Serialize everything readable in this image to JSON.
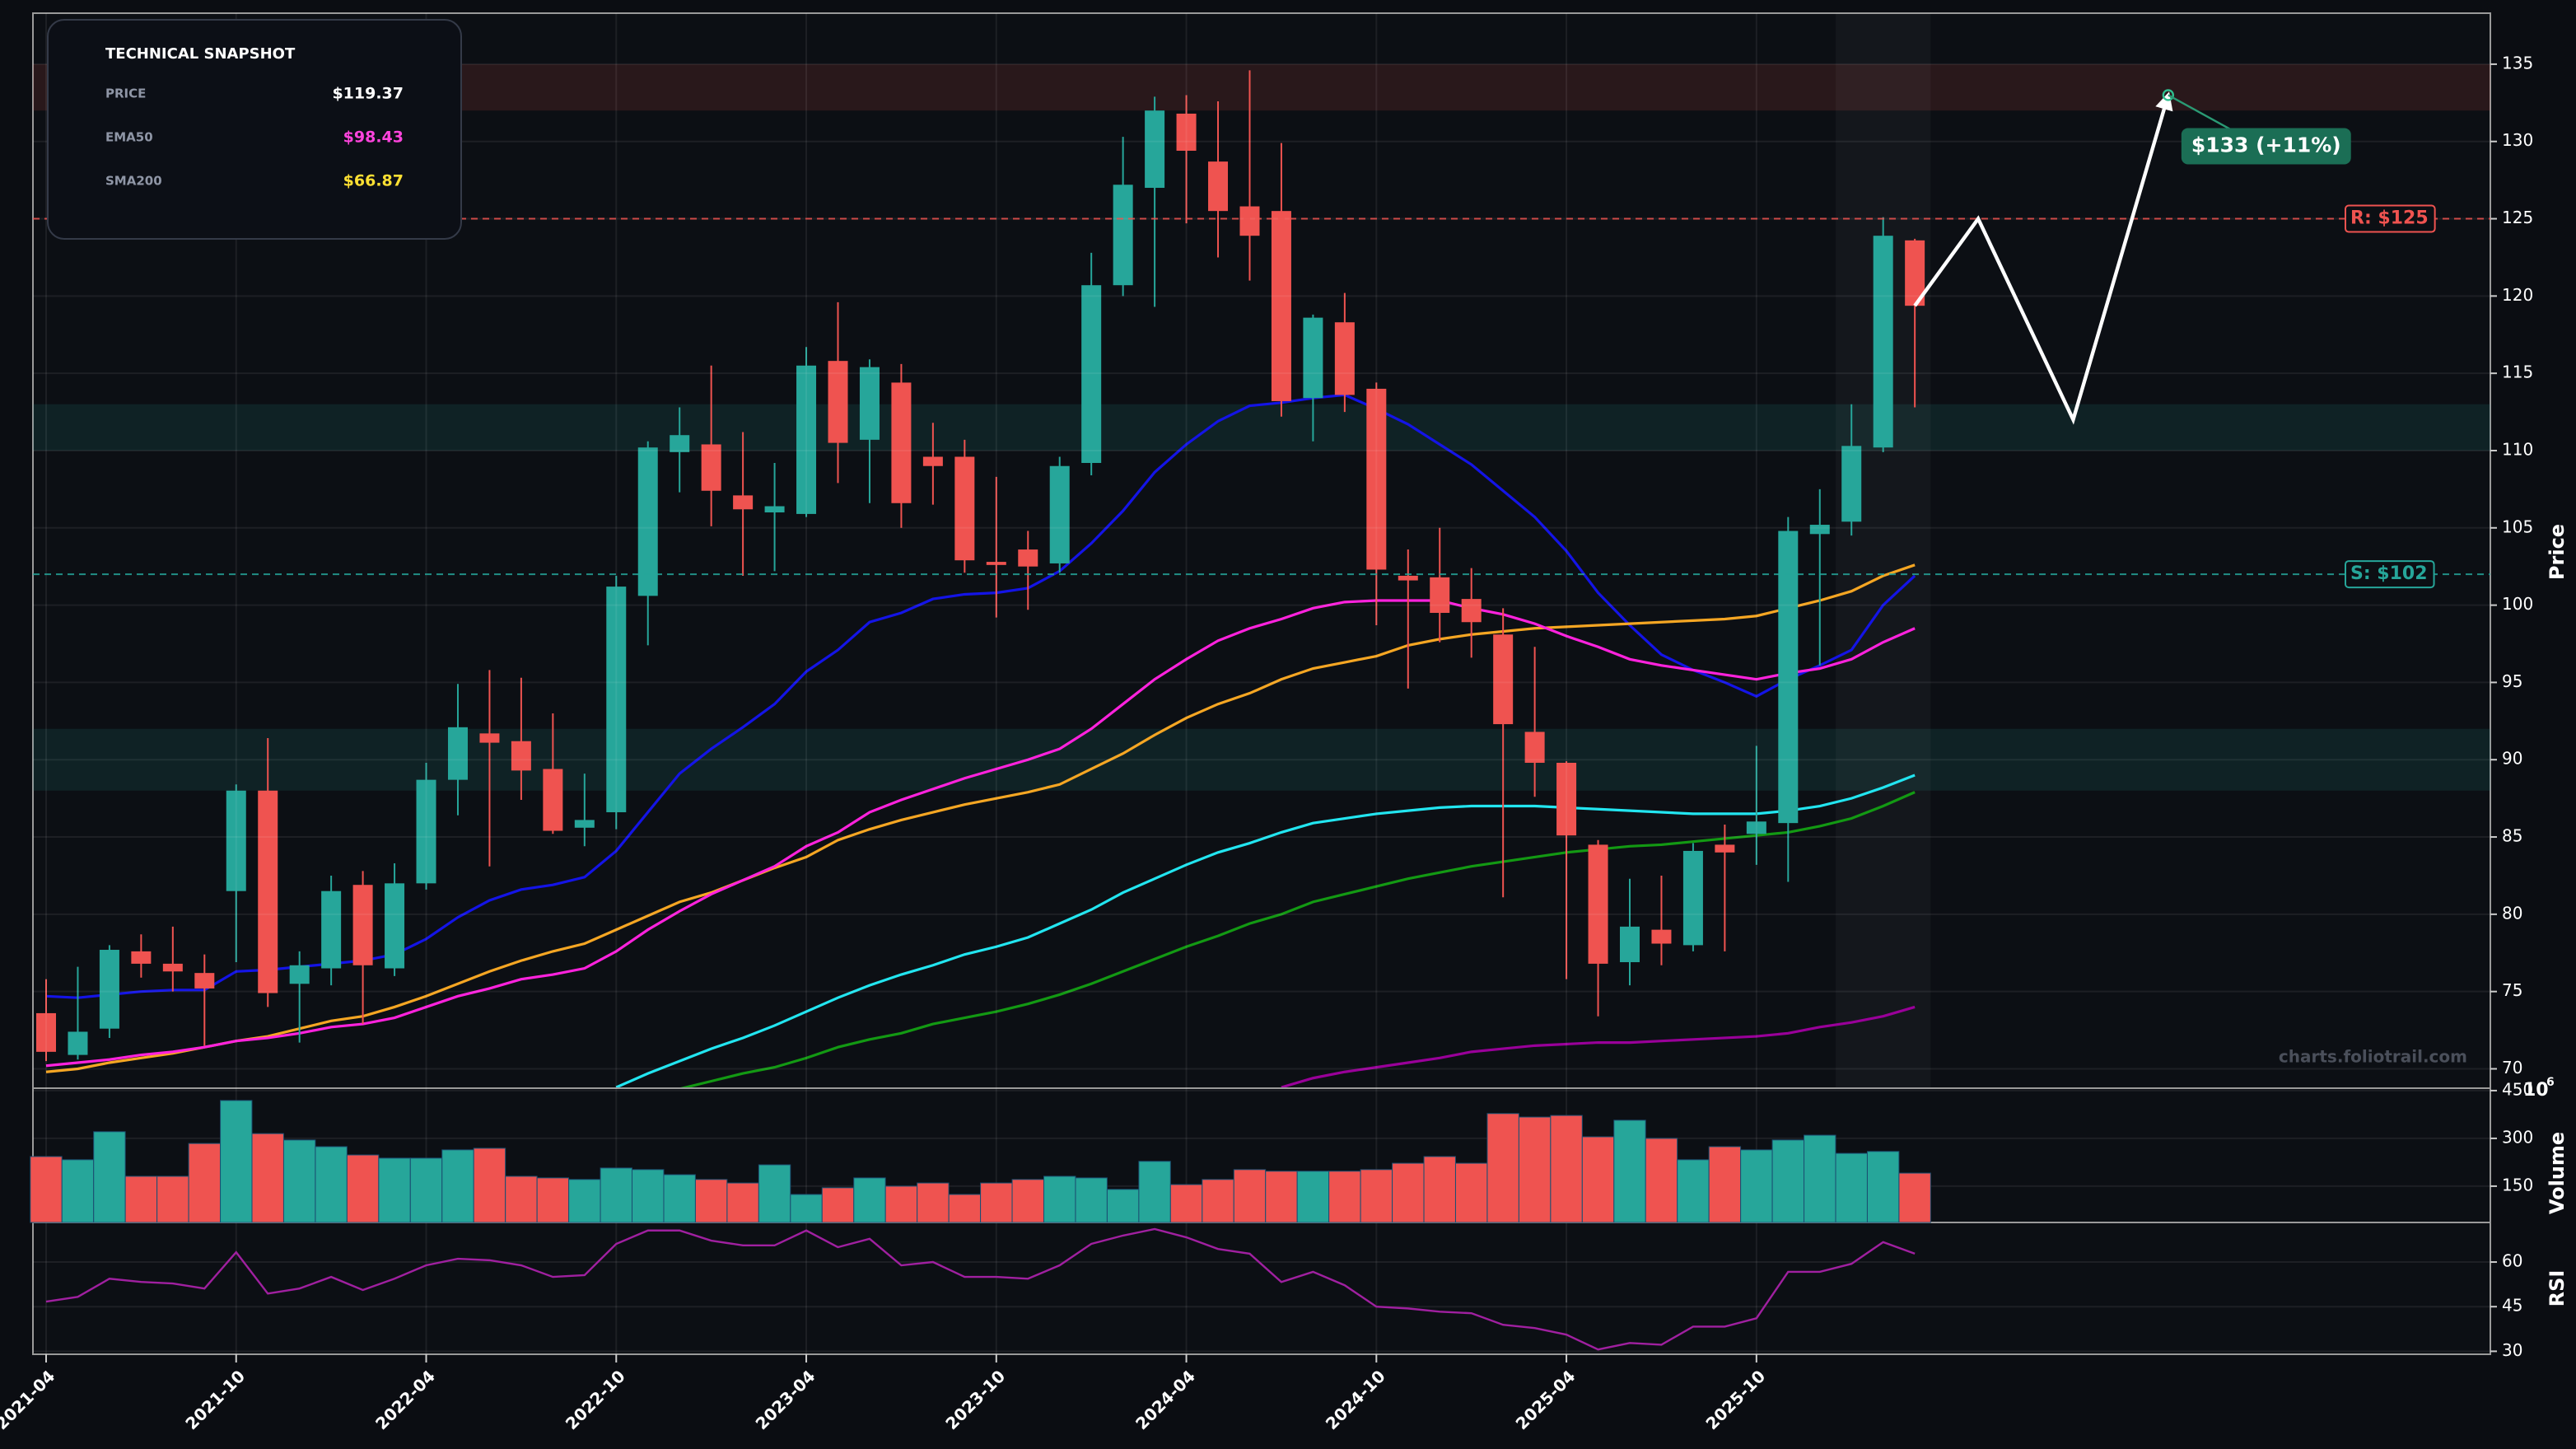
{
  "chart_data": {
    "type": "candlestick",
    "x": [
      "2021-04",
      "2021-05",
      "2021-06",
      "2021-07",
      "2021-08",
      "2021-09",
      "2021-10",
      "2021-11",
      "2021-12",
      "2022-01",
      "2022-02",
      "2022-03",
      "2022-04",
      "2022-05",
      "2022-06",
      "2022-07",
      "2022-08",
      "2022-09",
      "2022-10",
      "2022-11",
      "2022-12",
      "2023-01",
      "2023-02",
      "2023-03",
      "2023-04",
      "2023-05",
      "2023-06",
      "2023-07",
      "2023-08",
      "2023-09",
      "2023-10",
      "2023-11",
      "2023-12",
      "2024-01",
      "2024-02",
      "2024-03",
      "2024-04",
      "2024-05",
      "2024-06",
      "2024-07",
      "2024-08",
      "2024-09",
      "2024-10",
      "2024-11",
      "2024-12",
      "2025-01",
      "2025-02",
      "2025-03",
      "2025-04",
      "2025-05",
      "2025-06",
      "2025-07",
      "2025-08",
      "2025-09",
      "2025-10",
      "2025-11",
      "2025-12",
      "2026-01",
      "2026-02",
      "2026-03"
    ],
    "open": [
      73.6,
      70.9,
      72.6,
      77.6,
      76.8,
      76.2,
      81.5,
      88.0,
      75.5,
      76.5,
      81.9,
      76.5,
      82.0,
      88.7,
      91.7,
      91.2,
      89.4,
      85.6,
      86.6,
      100.6,
      109.9,
      110.4,
      107.1,
      106.0,
      105.9,
      115.8,
      110.7,
      114.4,
      109.6,
      109.6,
      102.8,
      103.6,
      102.7,
      109.2,
      120.7,
      127.0,
      131.8,
      128.7,
      125.8,
      125.5,
      113.4,
      118.3,
      114.0,
      101.9,
      101.8,
      100.4,
      98.1,
      91.8,
      89.8,
      84.5,
      76.9,
      79.0,
      78.0,
      84.5,
      85.2,
      85.9,
      104.6,
      105.4,
      110.2,
      123.6
    ],
    "high": [
      75.8,
      76.6,
      78.0,
      78.7,
      79.2,
      77.4,
      88.4,
      91.4,
      77.6,
      82.5,
      82.8,
      83.3,
      89.8,
      94.9,
      95.8,
      95.3,
      93.0,
      89.1,
      101.9,
      110.6,
      112.8,
      115.5,
      111.2,
      109.2,
      116.7,
      119.6,
      115.9,
      115.6,
      111.8,
      110.7,
      108.3,
      104.8,
      109.6,
      122.8,
      130.3,
      132.9,
      133.0,
      132.6,
      134.6,
      129.9,
      118.8,
      120.2,
      114.4,
      103.6,
      105.0,
      102.4,
      99.8,
      97.3,
      89.9,
      84.8,
      82.3,
      82.5,
      84.6,
      85.8,
      90.9,
      105.7,
      107.5,
      113.0,
      125.1,
      123.7
    ],
    "low": [
      70.5,
      70.6,
      72.0,
      75.9,
      75.0,
      71.5,
      76.9,
      74.0,
      71.7,
      75.4,
      72.9,
      76.0,
      81.6,
      86.4,
      83.1,
      87.4,
      85.2,
      84.4,
      85.5,
      97.4,
      107.3,
      105.1,
      101.9,
      102.2,
      105.7,
      107.9,
      106.6,
      105.0,
      106.5,
      102.1,
      99.2,
      99.7,
      102.1,
      108.4,
      120.0,
      119.3,
      124.7,
      122.5,
      121.0,
      112.2,
      110.6,
      112.5,
      98.7,
      94.6,
      97.6,
      96.6,
      81.1,
      87.6,
      75.8,
      73.4,
      75.4,
      76.7,
      77.6,
      77.6,
      83.2,
      82.1,
      96.1,
      104.5,
      109.9,
      112.8
    ],
    "close": [
      71.1,
      72.4,
      77.7,
      76.8,
      76.3,
      75.2,
      88.0,
      74.9,
      76.7,
      81.5,
      76.7,
      82.0,
      88.7,
      92.1,
      91.1,
      89.3,
      85.4,
      86.1,
      101.2,
      110.2,
      111.0,
      107.4,
      106.2,
      106.4,
      115.5,
      110.5,
      115.4,
      106.6,
      109.0,
      102.9,
      102.6,
      102.5,
      109.0,
      120.7,
      127.2,
      132.0,
      129.4,
      125.5,
      123.9,
      113.2,
      118.6,
      113.6,
      102.3,
      101.6,
      99.5,
      98.9,
      92.3,
      89.8,
      85.1,
      76.8,
      79.2,
      78.1,
      84.1,
      84.0,
      86.0,
      104.8,
      105.2,
      110.3,
      123.9,
      119.37
    ],
    "up_color": "#26a69a",
    "down_color": "#ef5350",
    "ylim": [
      68.8,
      138.3
    ],
    "yticks": [
      70,
      75,
      80,
      85,
      90,
      95,
      100,
      105,
      110,
      115,
      120,
      125,
      130,
      135
    ],
    "ylabel": "Price",
    "grid": true,
    "xticks": [
      "2021-04",
      "2021-10",
      "2022-04",
      "2022-10",
      "2023-04",
      "2023-10",
      "2024-04",
      "2024-10",
      "2025-04",
      "2025-10"
    ],
    "overlays": [
      {
        "color": "#1414e6",
        "values": [
          74.7,
          74.6,
          74.8,
          75.0,
          75.1,
          75.1,
          76.3,
          76.4,
          76.6,
          76.8,
          77.0,
          77.4,
          78.4,
          79.8,
          80.9,
          81.6,
          81.9,
          82.4,
          84.1,
          86.6,
          89.1,
          90.7,
          92.1,
          93.6,
          95.7,
          97.1,
          98.9,
          99.5,
          100.4,
          100.7,
          100.8,
          101.1,
          102.2,
          104.0,
          106.1,
          108.6,
          110.4,
          111.9,
          112.9,
          113.1,
          113.4,
          113.6,
          112.7,
          111.7,
          110.4,
          109.1,
          107.4,
          105.7,
          103.5,
          100.8,
          98.7,
          96.8,
          95.8,
          95.0,
          94.1,
          95.2,
          96.1,
          97.1,
          100.0,
          101.9
        ]
      },
      {
        "color": "#f5a623",
        "values": [
          69.8,
          70.0,
          70.4,
          70.7,
          71.0,
          71.4,
          71.8,
          72.1,
          72.6,
          73.1,
          73.4,
          74.0,
          74.7,
          75.5,
          76.3,
          77.0,
          77.6,
          78.1,
          79.0,
          79.9,
          80.8,
          81.4,
          82.2,
          83.0,
          83.7,
          84.8,
          85.5,
          86.1,
          86.6,
          87.1,
          87.5,
          87.9,
          88.4,
          89.4,
          90.4,
          91.6,
          92.7,
          93.6,
          94.3,
          95.2,
          95.9,
          96.3,
          96.7,
          97.4,
          97.8,
          98.1,
          98.3,
          98.5,
          98.6,
          98.7,
          98.8,
          98.9,
          99.0,
          99.1,
          99.3,
          99.8,
          100.3,
          100.9,
          101.9,
          102.6
        ]
      },
      {
        "color": "#ff22dd",
        "values": [
          70.2,
          70.4,
          70.6,
          70.9,
          71.1,
          71.4,
          71.8,
          72.0,
          72.3,
          72.7,
          72.9,
          73.3,
          74.0,
          74.7,
          75.2,
          75.8,
          76.1,
          76.5,
          77.6,
          79.0,
          80.2,
          81.3,
          82.2,
          83.1,
          84.4,
          85.3,
          86.6,
          87.4,
          88.1,
          88.8,
          89.4,
          90.0,
          90.7,
          92.0,
          93.6,
          95.2,
          96.5,
          97.7,
          98.5,
          99.1,
          99.8,
          100.2,
          100.3,
          100.3,
          100.3,
          99.8,
          99.4,
          98.8,
          98.0,
          97.3,
          96.5,
          96.1,
          95.8,
          95.5,
          95.2,
          95.6,
          95.9,
          96.5,
          97.6,
          98.5
        ]
      },
      {
        "color": "#22e5f0",
        "values": [
          null,
          null,
          null,
          null,
          null,
          null,
          null,
          null,
          null,
          null,
          null,
          null,
          null,
          null,
          null,
          null,
          null,
          null,
          68.8,
          69.7,
          70.5,
          71.3,
          72.0,
          72.8,
          73.7,
          74.6,
          75.4,
          76.1,
          76.7,
          77.4,
          77.9,
          78.5,
          79.4,
          80.3,
          81.4,
          82.3,
          83.2,
          84.0,
          84.6,
          85.3,
          85.9,
          86.2,
          86.5,
          86.7,
          86.9,
          87.0,
          87.0,
          87.0,
          86.9,
          86.8,
          86.7,
          86.6,
          86.5,
          86.5,
          86.5,
          86.7,
          87.0,
          87.5,
          88.2,
          89.0
        ]
      },
      {
        "color": "#139913",
        "values": [
          null,
          null,
          null,
          null,
          null,
          null,
          null,
          null,
          null,
          null,
          null,
          null,
          null,
          null,
          null,
          null,
          null,
          null,
          null,
          null,
          68.7,
          69.2,
          69.7,
          70.1,
          70.7,
          71.4,
          71.9,
          72.3,
          72.9,
          73.3,
          73.7,
          74.2,
          74.8,
          75.5,
          76.3,
          77.1,
          77.9,
          78.6,
          79.4,
          80.0,
          80.8,
          81.3,
          81.8,
          82.3,
          82.7,
          83.1,
          83.4,
          83.7,
          84.0,
          84.2,
          84.4,
          84.5,
          84.7,
          84.9,
          85.1,
          85.3,
          85.7,
          86.2,
          87.0,
          87.9
        ]
      },
      {
        "color": "#990099",
        "values": [
          null,
          null,
          null,
          null,
          null,
          null,
          null,
          null,
          null,
          null,
          null,
          null,
          null,
          null,
          null,
          null,
          null,
          null,
          null,
          null,
          null,
          null,
          null,
          null,
          null,
          null,
          null,
          null,
          null,
          null,
          null,
          null,
          null,
          null,
          null,
          null,
          null,
          null,
          null,
          68.8,
          69.4,
          69.8,
          70.1,
          70.4,
          70.7,
          71.1,
          71.3,
          71.5,
          71.6,
          71.7,
          71.7,
          71.8,
          71.9,
          72.0,
          72.1,
          72.3,
          72.7,
          73.0,
          73.4,
          74.0
        ]
      }
    ],
    "zones": [
      {
        "range": [
          132,
          135
        ],
        "color": "#ef5350"
      },
      {
        "range": [
          110,
          113
        ],
        "color": "#26a69a"
      },
      {
        "range": [
          88,
          92
        ],
        "color": "#26a69a"
      }
    ],
    "levels": [
      {
        "value": 125,
        "label": "R: $125",
        "color": "#ef5350"
      },
      {
        "value": 102,
        "label": "S: $102",
        "color": "#26a69a"
      }
    ],
    "highlight_x": [
      "2026-01",
      "2026-03"
    ],
    "projection": {
      "x": [
        "2026-03",
        "2026-05",
        "2026-08",
        "2026-11"
      ],
      "values": [
        119.37,
        125,
        112,
        133
      ],
      "color": "#ffffff",
      "target_label": "$133 (+11%)",
      "target_color": "#1b6e55"
    },
    "watermark": "charts.foliotrail.com",
    "volume": {
      "values": [
        243,
        233,
        321,
        181,
        181,
        284,
        419,
        315,
        295,
        274,
        248,
        238,
        238,
        264,
        269,
        181,
        176,
        171,
        207,
        202,
        186,
        171,
        160,
        217,
        124,
        145,
        176,
        150,
        160,
        124,
        160,
        171,
        181,
        176,
        140,
        228,
        155,
        171,
        202,
        197,
        197,
        197,
        202,
        222,
        243,
        222,
        378,
        367,
        372,
        305,
        357,
        300,
        233,
        274,
        264,
        295,
        310,
        253,
        259,
        191
      ],
      "ylim": [
        36,
        455
      ],
      "yticks": [
        150,
        300,
        450
      ],
      "ylabel": "Volume",
      "offset_base": "10",
      "offset_exp": "6"
    },
    "rsi": {
      "values": [
        46.7,
        48.3,
        54.4,
        53.3,
        52.8,
        51.1,
        63.3,
        49.4,
        51.1,
        55.0,
        50.6,
        54.4,
        58.9,
        61.1,
        60.6,
        58.9,
        55.0,
        55.6,
        66.1,
        70.6,
        70.6,
        67.2,
        65.6,
        65.6,
        70.6,
        65.0,
        67.8,
        58.9,
        60.0,
        55.0,
        55.0,
        54.4,
        58.9,
        66.1,
        68.9,
        71.1,
        68.3,
        64.4,
        62.8,
        53.3,
        56.7,
        52.2,
        45.0,
        44.4,
        43.3,
        42.8,
        38.9,
        37.8,
        35.6,
        30.6,
        32.8,
        32.2,
        38.3,
        38.3,
        41.1,
        56.7,
        56.7,
        59.4,
        66.7,
        62.8
      ],
      "color": "#a020a0",
      "ylim": [
        29,
        73.3
      ],
      "yticks": [
        30,
        45,
        60
      ],
      "ylabel": "RSI"
    }
  },
  "snapshot": {
    "title": "TECHNICAL SNAPSHOT",
    "rows": [
      {
        "label": "PRICE",
        "value": "$119.37",
        "color": "#ffffff"
      },
      {
        "label": "EMA50",
        "value": "$98.43",
        "color": "#ff44dd"
      },
      {
        "label": "SMA200",
        "value": "$66.87",
        "color": "#ffe033"
      }
    ]
  }
}
